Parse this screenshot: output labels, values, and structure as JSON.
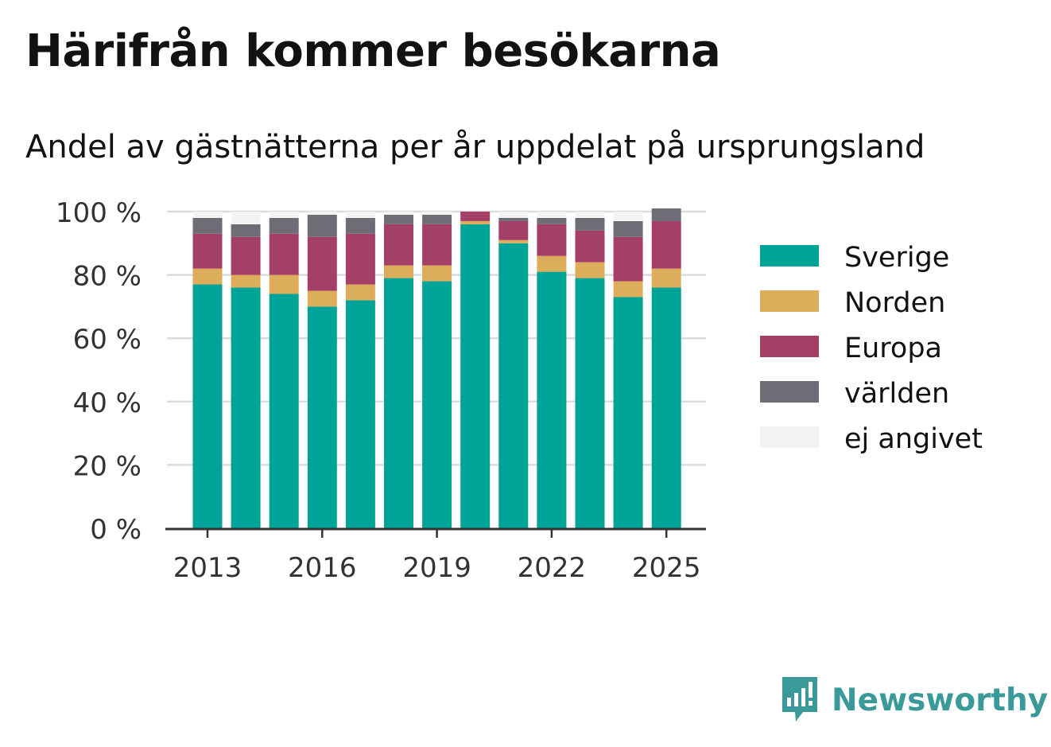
{
  "header": {
    "title": "Härifrån kommer besökarna",
    "subtitle": "Andel av gästnätterna per år uppdelat på ursprungsland"
  },
  "brand": {
    "name": "Newsworthy",
    "color": "#3a9a9a"
  },
  "chart_data": {
    "type": "bar",
    "stacked": true,
    "categories": [
      "2013",
      "2014",
      "2015",
      "2016",
      "2017",
      "2018",
      "2019",
      "2020",
      "2021",
      "2022",
      "2023",
      "2024",
      "2025"
    ],
    "x_tick_labels": [
      "2013",
      "2016",
      "2019",
      "2022",
      "2025"
    ],
    "y_tick_labels": [
      "0 %",
      "20 %",
      "40 %",
      "60 %",
      "80 %",
      "100 %"
    ],
    "ylim": [
      0,
      100
    ],
    "grid": true,
    "legend_position": "right",
    "series": [
      {
        "name": "Sverige",
        "color": "#00a398",
        "values": [
          77,
          76,
          74,
          70,
          72,
          79,
          78,
          96,
          90,
          81,
          79,
          73,
          76
        ]
      },
      {
        "name": "Norden",
        "color": "#dcad5a",
        "values": [
          5,
          4,
          6,
          5,
          5,
          4,
          5,
          1,
          1,
          5,
          5,
          5,
          6
        ]
      },
      {
        "name": "Europa",
        "color": "#a43f68",
        "values": [
          11,
          12,
          13,
          17,
          16,
          13,
          13,
          3,
          6,
          10,
          10,
          14,
          15
        ]
      },
      {
        "name": "världen",
        "color": "#6e6d75",
        "values": [
          5,
          4,
          5,
          7,
          5,
          3,
          3,
          0,
          1,
          2,
          4,
          5,
          4
        ]
      },
      {
        "name": "ej angivet",
        "color": "#f3f3f2",
        "values": [
          2,
          4,
          2,
          1,
          2,
          1,
          1,
          0,
          2,
          2,
          2,
          3,
          0
        ]
      }
    ]
  }
}
